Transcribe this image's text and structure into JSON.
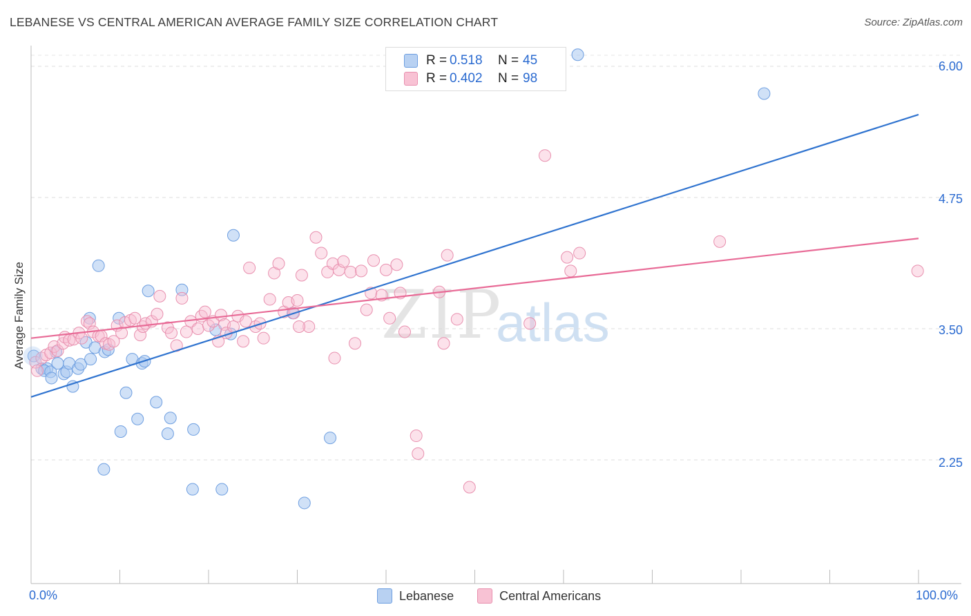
{
  "title": "LEBANESE VS CENTRAL AMERICAN AVERAGE FAMILY SIZE CORRELATION CHART",
  "source": "Source: ZipAtlas.com",
  "watermark": {
    "zip": "ZIP",
    "atlas": "atlas"
  },
  "legend": {
    "rows": [
      {
        "r_label": "R =",
        "r_value": "0.518",
        "n_label": "N =",
        "n_value": "45"
      },
      {
        "r_label": "R =",
        "r_value": "0.402",
        "n_label": "N =",
        "n_value": "98"
      }
    ]
  },
  "bottom_legend": [
    "Lebanese",
    "Central Americans"
  ],
  "x_tick_labels": {
    "left": "0.0%",
    "right": "100.0%"
  },
  "y_tick_labels": [
    "6.00",
    "4.75",
    "3.50",
    "2.25"
  ],
  "colors": {
    "blue": "#2f73cf",
    "pink": "#e86a96",
    "blue_fill": "#b8d1f2",
    "pink_fill": "#f8c2d4",
    "axis_text": "#2a6ad0"
  },
  "chart_data": {
    "type": "scatter",
    "title": "LEBANESE VS CENTRAL AMERICAN AVERAGE FAMILY SIZE CORRELATION CHART",
    "xlabel": "",
    "ylabel": "Average Family Size",
    "xlim": [
      0,
      100
    ],
    "ylim": [
      1.25,
      6.25
    ],
    "yticks": [
      2.25,
      3.5,
      4.75,
      6.0
    ],
    "grid": true,
    "legend_position": "top-center",
    "series": [
      {
        "name": "Lebanese",
        "color": "#2f73cf",
        "trend": {
          "x": [
            0,
            100
          ],
          "y": [
            2.85,
            5.54
          ]
        },
        "points": [
          [
            0.3,
            3.24
          ],
          [
            1.2,
            3.12
          ],
          [
            1.8,
            3.12
          ],
          [
            1.5,
            3.1
          ],
          [
            2.2,
            3.09
          ],
          [
            2.3,
            3.03
          ],
          [
            3.0,
            3.17
          ],
          [
            2.8,
            3.28
          ],
          [
            3.7,
            3.07
          ],
          [
            4.0,
            3.09
          ],
          [
            4.3,
            3.17
          ],
          [
            4.7,
            2.95
          ],
          [
            5.3,
            3.12
          ],
          [
            5.6,
            3.16
          ],
          [
            6.2,
            3.37
          ],
          [
            6.6,
            3.6
          ],
          [
            6.7,
            3.21
          ],
          [
            7.2,
            3.32
          ],
          [
            7.6,
            4.1
          ],
          [
            8.3,
            3.28
          ],
          [
            8.7,
            3.3
          ],
          [
            9.9,
            3.6
          ],
          [
            10.1,
            2.52
          ],
          [
            8.2,
            2.16
          ],
          [
            10.7,
            2.89
          ],
          [
            11.4,
            3.21
          ],
          [
            12.0,
            2.64
          ],
          [
            12.5,
            3.17
          ],
          [
            12.8,
            3.19
          ],
          [
            13.2,
            3.86
          ],
          [
            14.1,
            2.8
          ],
          [
            15.4,
            2.5
          ],
          [
            15.7,
            2.65
          ],
          [
            17.0,
            3.87
          ],
          [
            18.2,
            1.97
          ],
          [
            18.3,
            2.54
          ],
          [
            20.8,
            3.49
          ],
          [
            21.5,
            1.97
          ],
          [
            22.5,
            3.45
          ],
          [
            22.8,
            4.39
          ],
          [
            29.5,
            3.65
          ],
          [
            30.8,
            1.84
          ],
          [
            33.7,
            2.46
          ],
          [
            61.6,
            6.11
          ],
          [
            82.6,
            5.74
          ]
        ]
      },
      {
        "name": "Central Americans",
        "color": "#e86a96",
        "trend": {
          "x": [
            0,
            100
          ],
          "y": [
            3.41,
            4.36
          ]
        },
        "points": [
          [
            0.5,
            3.18
          ],
          [
            0.7,
            3.1
          ],
          [
            1.2,
            3.22
          ],
          [
            1.7,
            3.25
          ],
          [
            2.2,
            3.27
          ],
          [
            2.6,
            3.33
          ],
          [
            3.0,
            3.29
          ],
          [
            3.6,
            3.36
          ],
          [
            3.8,
            3.42
          ],
          [
            4.3,
            3.39
          ],
          [
            4.8,
            3.4
          ],
          [
            5.4,
            3.46
          ],
          [
            5.7,
            3.41
          ],
          [
            6.3,
            3.57
          ],
          [
            6.6,
            3.55
          ],
          [
            7.0,
            3.47
          ],
          [
            7.6,
            3.43
          ],
          [
            7.9,
            3.43
          ],
          [
            8.4,
            3.36
          ],
          [
            8.8,
            3.35
          ],
          [
            9.3,
            3.38
          ],
          [
            9.7,
            3.53
          ],
          [
            10.2,
            3.46
          ],
          [
            10.6,
            3.56
          ],
          [
            11.2,
            3.58
          ],
          [
            11.7,
            3.6
          ],
          [
            12.3,
            3.44
          ],
          [
            12.6,
            3.52
          ],
          [
            12.9,
            3.55
          ],
          [
            13.6,
            3.57
          ],
          [
            14.2,
            3.64
          ],
          [
            14.5,
            3.81
          ],
          [
            15.4,
            3.51
          ],
          [
            15.8,
            3.46
          ],
          [
            16.4,
            3.34
          ],
          [
            17.0,
            3.79
          ],
          [
            17.5,
            3.47
          ],
          [
            18.0,
            3.57
          ],
          [
            18.8,
            3.5
          ],
          [
            19.2,
            3.62
          ],
          [
            19.6,
            3.66
          ],
          [
            20.0,
            3.53
          ],
          [
            20.5,
            3.57
          ],
          [
            21.4,
            3.63
          ],
          [
            21.8,
            3.54
          ],
          [
            22.0,
            3.46
          ],
          [
            22.8,
            3.52
          ],
          [
            23.3,
            3.62
          ],
          [
            23.9,
            3.38
          ],
          [
            24.2,
            3.57
          ],
          [
            24.6,
            4.08
          ],
          [
            25.3,
            3.52
          ],
          [
            25.8,
            3.55
          ],
          [
            26.2,
            3.41
          ],
          [
            26.9,
            3.78
          ],
          [
            27.4,
            4.03
          ],
          [
            27.9,
            4.12
          ],
          [
            28.5,
            3.66
          ],
          [
            29.0,
            3.75
          ],
          [
            29.6,
            3.65
          ],
          [
            30.0,
            3.77
          ],
          [
            30.5,
            4.01
          ],
          [
            31.3,
            3.52
          ],
          [
            32.1,
            4.37
          ],
          [
            32.7,
            4.22
          ],
          [
            33.4,
            4.04
          ],
          [
            34.0,
            4.12
          ],
          [
            34.7,
            4.06
          ],
          [
            35.2,
            4.14
          ],
          [
            36.0,
            4.04
          ],
          [
            36.5,
            3.36
          ],
          [
            37.2,
            4.05
          ],
          [
            37.8,
            3.68
          ],
          [
            38.3,
            3.84
          ],
          [
            38.6,
            4.15
          ],
          [
            39.5,
            3.82
          ],
          [
            40.0,
            4.06
          ],
          [
            40.4,
            3.6
          ],
          [
            41.2,
            4.11
          ],
          [
            41.6,
            3.84
          ],
          [
            42.1,
            3.47
          ],
          [
            43.6,
            2.31
          ],
          [
            43.4,
            2.48
          ],
          [
            46.0,
            3.85
          ],
          [
            46.5,
            3.36
          ],
          [
            48.0,
            3.59
          ],
          [
            49.4,
            1.99
          ],
          [
            56.2,
            3.55
          ],
          [
            57.9,
            5.15
          ],
          [
            60.4,
            4.18
          ],
          [
            60.8,
            4.05
          ],
          [
            61.8,
            4.22
          ],
          [
            77.6,
            4.33
          ],
          [
            99.9,
            4.05
          ],
          [
            46.9,
            4.2
          ],
          [
            34.2,
            3.22
          ],
          [
            30.2,
            3.52
          ],
          [
            21.1,
            3.38
          ]
        ]
      }
    ]
  }
}
